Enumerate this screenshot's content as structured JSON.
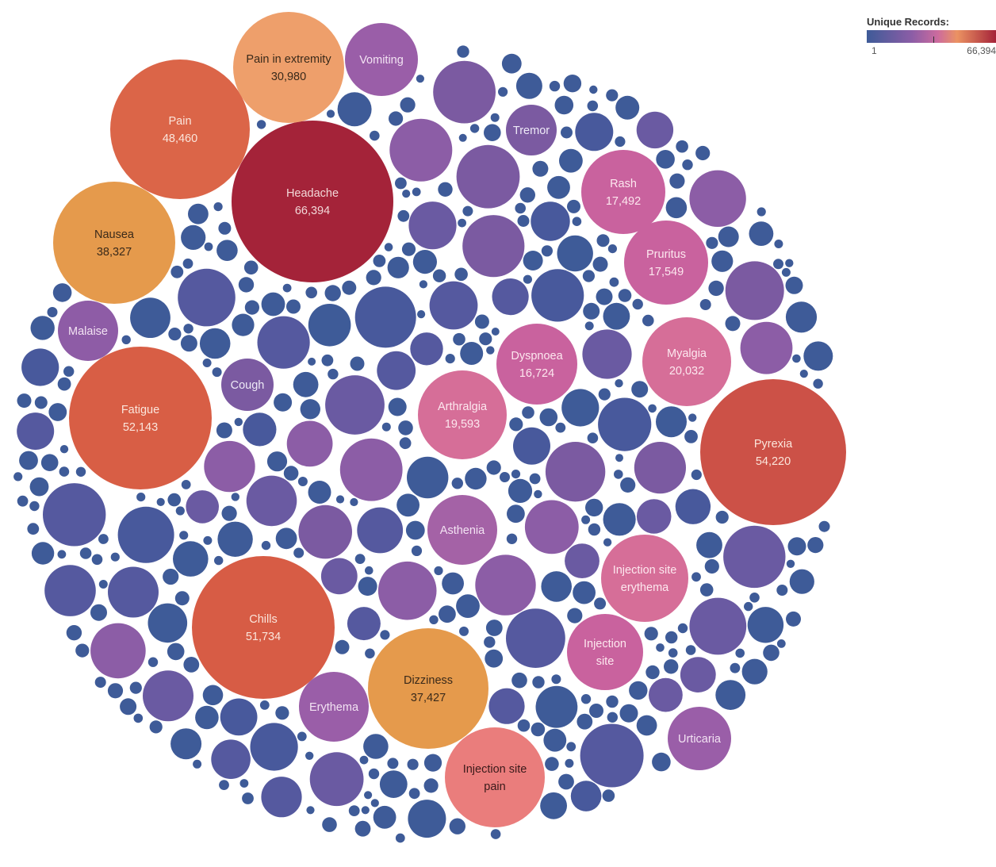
{
  "chart_data": {
    "type": "packed-bubble",
    "legend": {
      "title": "Unique Records:",
      "min_label": "1",
      "max_label": "66,394",
      "placement": "top-right"
    },
    "color_scale": {
      "low": "#3e5b98",
      "mid_low": "#8c5da6",
      "mid": "#cc6b9e",
      "mid_high": "#eb9262",
      "high": "#a42339"
    },
    "labeled_bubbles": [
      {
        "name": "Headache",
        "value": 66394,
        "display_value": "66,394"
      },
      {
        "name": "Pyrexia",
        "value": 54220,
        "display_value": "54,220"
      },
      {
        "name": "Fatigue",
        "value": 52143,
        "display_value": "52,143"
      },
      {
        "name": "Chills",
        "value": 51734,
        "display_value": "51,734"
      },
      {
        "name": "Pain",
        "value": 48460,
        "display_value": "48,460"
      },
      {
        "name": "Nausea",
        "value": 38327,
        "display_value": "38,327"
      },
      {
        "name": "Dizziness",
        "value": 37427,
        "display_value": "37,427"
      },
      {
        "name": "Pain in extremity",
        "value": 30980,
        "display_value": "30,980"
      },
      {
        "name": "Myalgia",
        "value": 20032,
        "display_value": "20,032"
      },
      {
        "name": "Arthralgia",
        "value": 19593,
        "display_value": "19,593"
      },
      {
        "name": "Pruritus",
        "value": 17549,
        "display_value": "17,549"
      },
      {
        "name": "Rash",
        "value": 17492,
        "display_value": "17,492"
      },
      {
        "name": "Dyspnoea",
        "value": 16724,
        "display_value": "16,724"
      },
      {
        "name": "Injection site pain",
        "value": null,
        "display_value": ""
      },
      {
        "name": "Injection site erythema",
        "value": null,
        "display_value": ""
      },
      {
        "name": "Injection site",
        "value": null,
        "display_value": ""
      },
      {
        "name": "Asthenia",
        "value": null,
        "display_value": ""
      },
      {
        "name": "Vomiting",
        "value": null,
        "display_value": ""
      },
      {
        "name": "Tremor",
        "value": null,
        "display_value": ""
      },
      {
        "name": "Malaise",
        "value": null,
        "display_value": ""
      },
      {
        "name": "Cough",
        "value": null,
        "display_value": ""
      },
      {
        "name": "Erythema",
        "value": null,
        "display_value": ""
      },
      {
        "name": "Urticaria",
        "value": null,
        "display_value": ""
      }
    ]
  }
}
